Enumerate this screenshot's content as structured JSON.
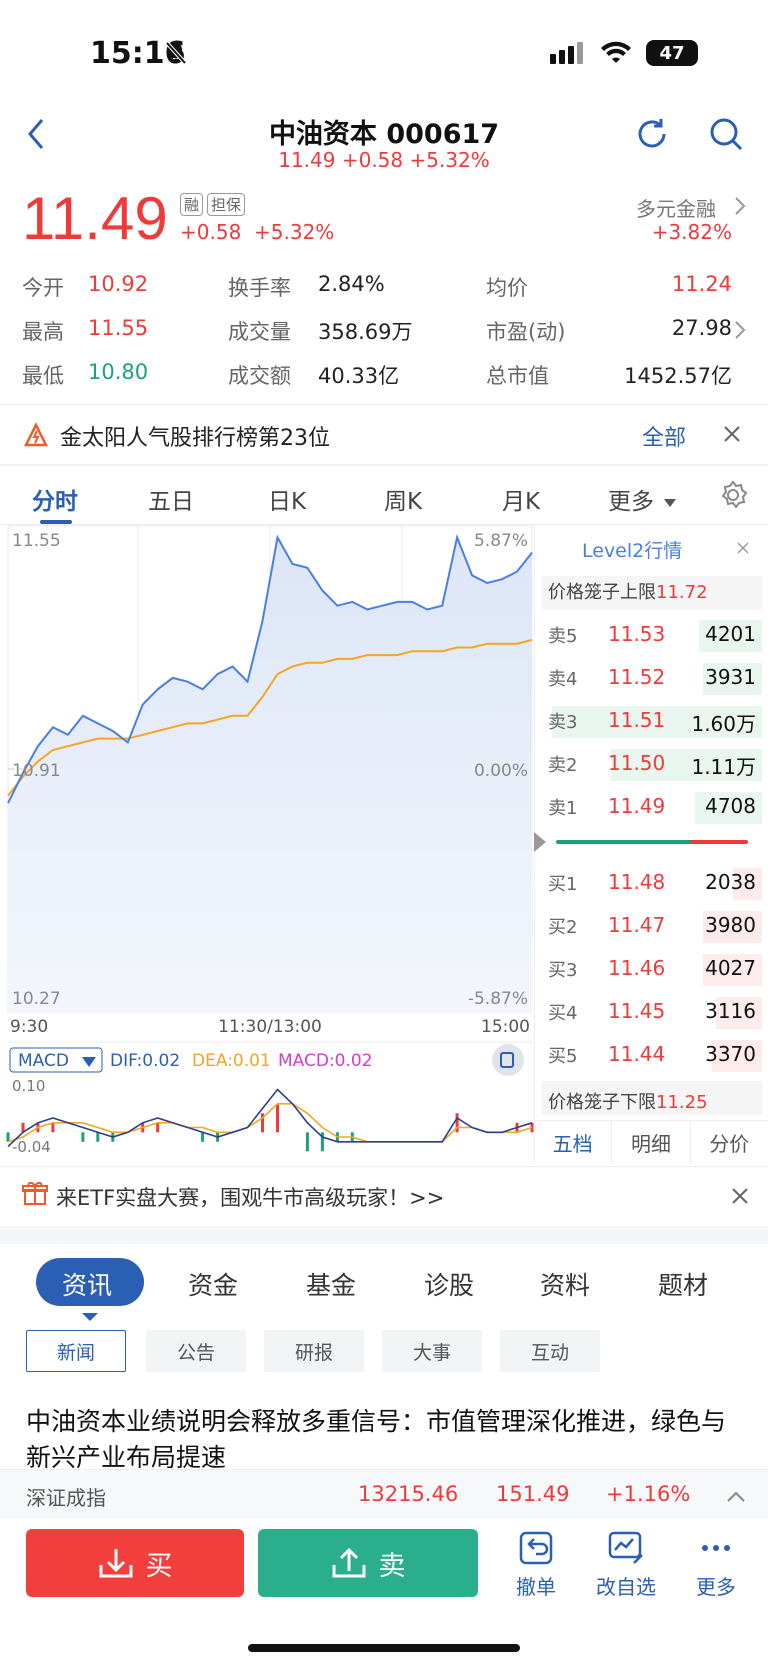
{
  "status": {
    "time": "15:16",
    "battery": "47"
  },
  "nav": {
    "title": "中油资本 000617",
    "subtitle": "11.49 +0.58 +5.32%"
  },
  "quote": {
    "price": "11.49",
    "tags": [
      "融",
      "担保"
    ],
    "change": "+0.58",
    "change_pct": "+5.32%",
    "sector_name": "多元金融",
    "sector_change": "+3.82%"
  },
  "stats": {
    "open_label": "今开",
    "open": "10.92",
    "high_label": "最高",
    "high": "11.55",
    "low_label": "最低",
    "low": "10.80",
    "turnover_label": "换手率",
    "turnover": "2.84%",
    "volume_label": "成交量",
    "volume": "358.69万",
    "amount_label": "成交额",
    "amount": "40.33亿",
    "avg_label": "均价",
    "avg": "11.24",
    "pe_label": "市盈(动)",
    "pe": "27.98",
    "mcap_label": "总市值",
    "mcap": "1452.57亿"
  },
  "rank_banner": {
    "text": "金太阳人气股排行榜第23位",
    "link": "全部"
  },
  "chart_tabs": [
    "分时",
    "五日",
    "日K",
    "周K",
    "月K",
    "更多"
  ],
  "chart": {
    "y_top": "11.55",
    "y_mid": "10.91",
    "y_bottom": "10.27",
    "pct_top": "5.87%",
    "pct_mid": "0.00%",
    "pct_bottom": "-5.87%",
    "x_labels": [
      "9:30",
      "11:30/13:00",
      "15:00"
    ]
  },
  "chart_data": {
    "type": "line",
    "series": [
      {
        "values": [
          10.82,
          10.9,
          10.97,
          11.02,
          11.0,
          11.05,
          11.03,
          11.01,
          10.98,
          11.08,
          11.12,
          11.15,
          11.14,
          11.12,
          11.16,
          11.18,
          11.14,
          11.3,
          11.52,
          11.45,
          11.44,
          11.38,
          11.34,
          11.35,
          11.33,
          11.34,
          11.35,
          11.35,
          11.33,
          11.34,
          11.52,
          11.42,
          11.4,
          11.41,
          11.43,
          11.48
        ]
      },
      {
        "values": [
          10.84,
          10.89,
          10.93,
          10.96,
          10.97,
          10.98,
          10.99,
          10.99,
          10.99,
          11.0,
          11.01,
          11.02,
          11.03,
          11.03,
          11.04,
          11.05,
          11.05,
          11.1,
          11.16,
          11.18,
          11.19,
          11.19,
          11.2,
          11.2,
          11.21,
          11.21,
          11.21,
          11.22,
          11.22,
          11.22,
          11.23,
          11.23,
          11.24,
          11.24,
          11.24,
          11.25
        ]
      }
    ],
    "ylim": [
      10.27,
      11.55
    ]
  },
  "macd": {
    "selector": "MACD",
    "dif": "DIF:0.02",
    "dea": "DEA:0.01",
    "macd": "MACD:0.02",
    "y_top": "0.10",
    "y_bottom": "-0.04",
    "dif_values": [
      -0.03,
      0.0,
      0.02,
      0.03,
      0.02,
      0.01,
      0.0,
      -0.01,
      0.0,
      0.02,
      0.03,
      0.02,
      0.01,
      0.0,
      -0.01,
      0.0,
      0.01,
      0.05,
      0.09,
      0.06,
      0.02,
      -0.01,
      -0.02,
      -0.02,
      -0.02,
      -0.02,
      -0.02,
      -0.02,
      -0.02,
      -0.02,
      0.03,
      0.01,
      0.0,
      0.0,
      0.01,
      0.02
    ],
    "dea_values": [
      -0.02,
      -0.01,
      0.01,
      0.02,
      0.02,
      0.02,
      0.01,
      0.0,
      0.0,
      0.01,
      0.02,
      0.02,
      0.01,
      0.01,
      0.0,
      0.0,
      0.01,
      0.03,
      0.06,
      0.06,
      0.04,
      0.01,
      -0.01,
      -0.01,
      -0.02,
      -0.02,
      -0.02,
      -0.02,
      -0.02,
      -0.02,
      0.01,
      0.01,
      0.0,
      0.0,
      0.0,
      0.01
    ]
  },
  "level2": {
    "title": "Level2行情",
    "upper_label": "价格笼子上限",
    "upper": "11.72",
    "asks": [
      {
        "label": "卖5",
        "price": "11.53",
        "vol": "4201",
        "bar": 0.3
      },
      {
        "label": "卖4",
        "price": "11.52",
        "vol": "3931",
        "bar": 0.28
      },
      {
        "label": "卖3",
        "price": "11.51",
        "vol": "1.60万",
        "bar": 1.0
      },
      {
        "label": "卖2",
        "price": "11.50",
        "vol": "1.11万",
        "bar": 0.72
      },
      {
        "label": "卖1",
        "price": "11.49",
        "vol": "4708",
        "bar": 0.32
      }
    ],
    "bids": [
      {
        "label": "买1",
        "price": "11.48",
        "vol": "2038",
        "bar": 0.14
      },
      {
        "label": "买2",
        "price": "11.47",
        "vol": "3980",
        "bar": 0.28
      },
      {
        "label": "买3",
        "price": "11.46",
        "vol": "4027",
        "bar": 0.28
      },
      {
        "label": "买4",
        "price": "11.45",
        "vol": "3116",
        "bar": 0.22
      },
      {
        "label": "买5",
        "price": "11.44",
        "vol": "3370",
        "bar": 0.24
      }
    ],
    "lower_label": "价格笼子下限",
    "lower": "11.25",
    "tabs": [
      "五档",
      "明细",
      "分价"
    ]
  },
  "etf_banner": {
    "text": "来ETF实盘大赛，围观牛市高级玩家！>>"
  },
  "info_tabs": [
    "资讯",
    "资金",
    "基金",
    "诊股",
    "资料",
    "题材"
  ],
  "sub_tabs": [
    "新闻",
    "公告",
    "研报",
    "大事",
    "互动"
  ],
  "news": {
    "headline": "中油资本业绩说明会释放多重信号：市值管理深化推进，绿色与新兴产业布局提速"
  },
  "index_bar": {
    "name": "深证成指",
    "value": "13215.46",
    "change": "151.49",
    "pct": "+1.16%"
  },
  "actions": {
    "buy": "买",
    "sell": "卖",
    "cancel": "撤单",
    "edit": "改自选",
    "more": "更多"
  },
  "colors": {
    "up": "#f03a3a",
    "down": "#1aa37a",
    "accent": "#2b5fb4",
    "price_line": "#4a7fe0",
    "avg_line": "#f2a623"
  }
}
